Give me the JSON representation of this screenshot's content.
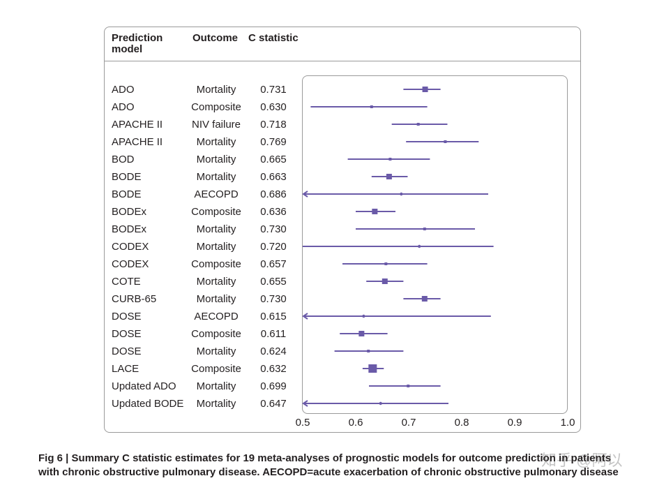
{
  "header": {
    "col_model": "Prediction\nmodel",
    "col_outcome": "Outcome",
    "col_c": "C statistic"
  },
  "caption": {
    "line1": "Fig 6 | Summary C statistic estimates for 19 meta-analyses of prognostic models for outcome prediction in patients",
    "line2": "with chronic obstructive pulmonary disease. AECOPD=acute exacerbation of chronic obstructive pulmonary disease"
  },
  "watermark": "知乎 @阿以",
  "colors": {
    "marker": "#6a5aa8",
    "border": "#9a9a9a",
    "text": "#231f20"
  },
  "chart_data": {
    "type": "forest",
    "x_ticks": [
      "0.5",
      "0.6",
      "0.7",
      "0.8",
      "0.9",
      "1.0"
    ],
    "xlim": [
      0.5,
      1.0
    ],
    "rows": [
      {
        "model": "ADO",
        "outcome": "Mortality",
        "c": 0.731,
        "lo": 0.69,
        "hi": 0.76,
        "w": 2,
        "arrow": false
      },
      {
        "model": "ADO",
        "outcome": "Composite",
        "c": 0.63,
        "lo": 0.515,
        "hi": 0.735,
        "w": 1,
        "arrow": false
      },
      {
        "model": "APACHE II",
        "outcome": "NIV failure",
        "c": 0.718,
        "lo": 0.668,
        "hi": 0.773,
        "w": 1,
        "arrow": false
      },
      {
        "model": "APACHE II",
        "outcome": "Mortality",
        "c": 0.769,
        "lo": 0.695,
        "hi": 0.832,
        "w": 1,
        "arrow": false
      },
      {
        "model": "BOD",
        "outcome": "Mortality",
        "c": 0.665,
        "lo": 0.585,
        "hi": 0.74,
        "w": 1,
        "arrow": false
      },
      {
        "model": "BODE",
        "outcome": "Mortality",
        "c": 0.663,
        "lo": 0.63,
        "hi": 0.698,
        "w": 2,
        "arrow": false
      },
      {
        "model": "BODE",
        "outcome": "AECOPD",
        "c": 0.686,
        "lo": 0.5,
        "hi": 0.85,
        "w": 0,
        "arrow": true
      },
      {
        "model": "BODEx",
        "outcome": "Composite",
        "c": 0.636,
        "lo": 0.6,
        "hi": 0.675,
        "w": 2,
        "arrow": false
      },
      {
        "model": "BODEx",
        "outcome": "Mortality",
        "c": 0.73,
        "lo": 0.6,
        "hi": 0.825,
        "w": 1,
        "arrow": false
      },
      {
        "model": "CODEX",
        "outcome": "Mortality",
        "c": 0.72,
        "lo": 0.5,
        "hi": 0.86,
        "w": 0,
        "arrow": false
      },
      {
        "model": "CODEX",
        "outcome": "Composite",
        "c": 0.657,
        "lo": 0.575,
        "hi": 0.735,
        "w": 1,
        "arrow": false
      },
      {
        "model": "COTE",
        "outcome": "Mortality",
        "c": 0.655,
        "lo": 0.62,
        "hi": 0.69,
        "w": 2,
        "arrow": false
      },
      {
        "model": "CURB-65",
        "outcome": "Mortality",
        "c": 0.73,
        "lo": 0.69,
        "hi": 0.76,
        "w": 2,
        "arrow": false
      },
      {
        "model": "DOSE",
        "outcome": "AECOPD",
        "c": 0.615,
        "lo": 0.5,
        "hi": 0.855,
        "w": 0,
        "arrow": true
      },
      {
        "model": "DOSE",
        "outcome": "Composite",
        "c": 0.611,
        "lo": 0.57,
        "hi": 0.66,
        "w": 2,
        "arrow": false
      },
      {
        "model": "DOSE",
        "outcome": "Mortality",
        "c": 0.624,
        "lo": 0.56,
        "hi": 0.69,
        "w": 1,
        "arrow": false
      },
      {
        "model": "LACE",
        "outcome": "Composite",
        "c": 0.632,
        "lo": 0.613,
        "hi": 0.653,
        "w": 3,
        "arrow": false
      },
      {
        "model": "Updated ADO",
        "outcome": "Mortality",
        "c": 0.699,
        "lo": 0.625,
        "hi": 0.76,
        "w": 1,
        "arrow": false
      },
      {
        "model": "Updated BODE",
        "outcome": "Mortality",
        "c": 0.647,
        "lo": 0.5,
        "hi": 0.775,
        "w": 0,
        "arrow": true
      }
    ]
  }
}
